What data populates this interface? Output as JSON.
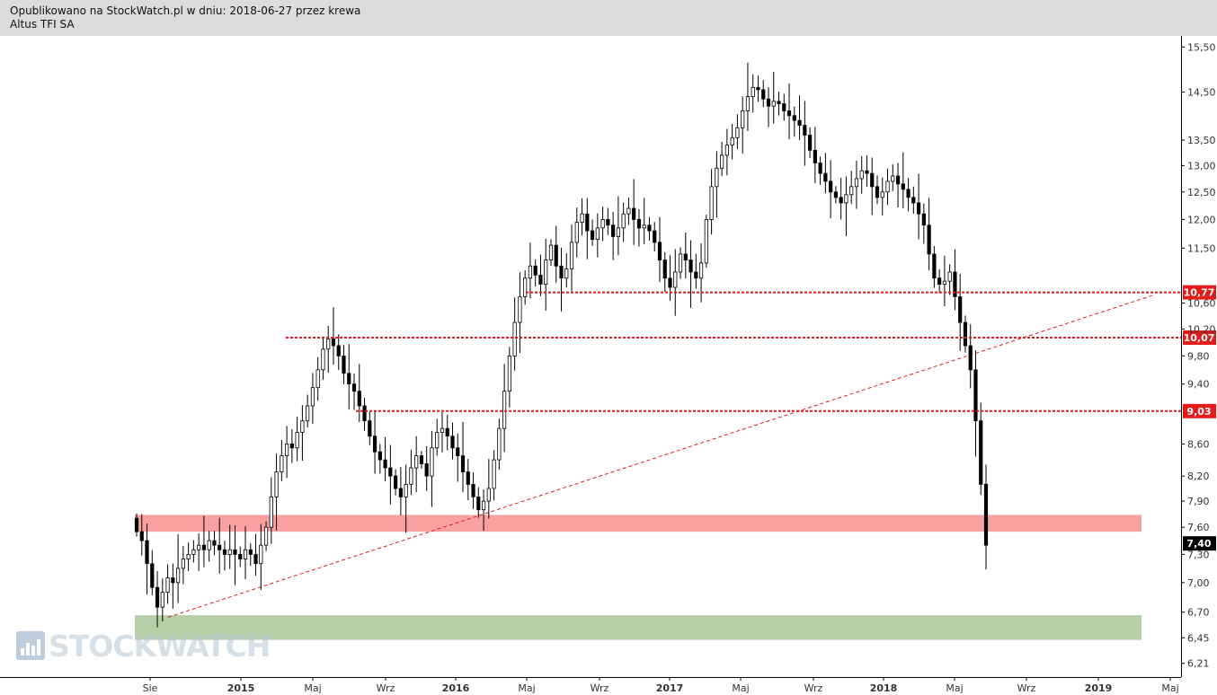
{
  "header": {
    "published_line": "Opublikowano na StockWatch.pl w dniu: 2018-06-27 przez krewa",
    "instrument": "Altus TFI SA"
  },
  "watermark": {
    "text": "STOCKWATCH"
  },
  "colors": {
    "level_line": "#e31b1b",
    "resistance_zone": "#f9a1a1",
    "support_zone": "#b5cfa8",
    "last_price_bg": "#000000",
    "candle_up": "#ffffff",
    "candle_down": "#000000"
  },
  "chart_data": {
    "type": "candlestick",
    "y_scale": "log",
    "ylim": [
      6.15,
      15.55
    ],
    "y_ticks": [
      "15,50",
      "14,50",
      "13,50",
      "13,00",
      "12,50",
      "12,00",
      "11,50",
      "10,60",
      "10,20",
      "9,80",
      "9,40",
      "8,60",
      "8,20",
      "7,90",
      "7,60",
      "7,30",
      "7,00",
      "6,70",
      "6,45",
      "6,21"
    ],
    "x_ticks": [
      {
        "label": "Sie",
        "bold": false
      },
      {
        "label": "2015",
        "bold": true
      },
      {
        "label": "Maj",
        "bold": false
      },
      {
        "label": "Wrz",
        "bold": false
      },
      {
        "label": "2016",
        "bold": true
      },
      {
        "label": "Maj",
        "bold": false
      },
      {
        "label": "Wrz",
        "bold": false
      },
      {
        "label": "2017",
        "bold": true
      },
      {
        "label": "Maj",
        "bold": false
      },
      {
        "label": "Wrz",
        "bold": false
      },
      {
        "label": "2018",
        "bold": true
      },
      {
        "label": "Maj",
        "bold": false
      },
      {
        "label": "Wrz",
        "bold": false
      },
      {
        "label": "2019",
        "bold": true
      },
      {
        "label": "Maj",
        "bold": false
      }
    ],
    "horizontal_levels": [
      {
        "value": 10.77,
        "label": "10,77"
      },
      {
        "value": 10.07,
        "label": "10,07"
      },
      {
        "value": 9.03,
        "label": "9,03"
      }
    ],
    "last_price": {
      "value": 7.4,
      "label": "7,40"
    },
    "zones": [
      {
        "name": "resistance-zone",
        "from": 7.55,
        "to": 7.74
      },
      {
        "name": "support-zone",
        "from": 6.43,
        "to": 6.67
      }
    ],
    "trendline": {
      "from": [
        "2014-09",
        6.65
      ],
      "to": [
        "2019-04",
        10.72
      ]
    },
    "price_path_weekly": [
      7.55,
      7.45,
      7.2,
      6.95,
      6.75,
      6.9,
      7.05,
      7.0,
      7.15,
      7.25,
      7.3,
      7.35,
      7.4,
      7.35,
      7.45,
      7.4,
      7.35,
      7.3,
      7.35,
      7.3,
      7.25,
      7.35,
      7.3,
      7.2,
      7.4,
      7.6,
      7.95,
      8.25,
      8.45,
      8.6,
      8.55,
      8.75,
      8.9,
      9.1,
      9.35,
      9.6,
      9.9,
      10.05,
      9.95,
      9.8,
      9.55,
      9.4,
      9.3,
      9.1,
      8.9,
      8.7,
      8.5,
      8.4,
      8.3,
      8.2,
      8.05,
      7.95,
      8.1,
      8.3,
      8.45,
      8.35,
      8.2,
      8.55,
      8.75,
      8.8,
      8.7,
      8.55,
      8.45,
      8.25,
      8.1,
      7.95,
      7.8,
      7.9,
      8.05,
      8.4,
      8.8,
      9.3,
      9.8,
      10.3,
      10.7,
      11.0,
      11.2,
      11.05,
      10.9,
      11.3,
      11.55,
      11.2,
      11.0,
      11.15,
      11.6,
      11.95,
      12.1,
      11.8,
      11.65,
      11.85,
      12.0,
      11.9,
      11.7,
      11.85,
      12.1,
      12.2,
      12.0,
      11.85,
      11.9,
      11.8,
      11.6,
      11.3,
      11.0,
      10.85,
      11.1,
      11.4,
      11.3,
      11.1,
      11.0,
      11.25,
      12.0,
      12.6,
      12.95,
      13.2,
      13.4,
      13.55,
      13.75,
      14.1,
      14.4,
      14.6,
      14.55,
      14.35,
      14.2,
      14.3,
      14.25,
      14.1,
      14.0,
      13.9,
      13.8,
      13.6,
      13.3,
      13.05,
      12.85,
      12.7,
      12.5,
      12.4,
      12.3,
      12.45,
      12.6,
      12.75,
      12.9,
      12.85,
      12.6,
      12.4,
      12.5,
      12.7,
      12.8,
      12.65,
      12.55,
      12.4,
      12.3,
      12.1,
      11.9,
      11.4,
      11.0,
      10.9,
      10.95,
      11.1,
      10.7,
      10.3,
      9.95,
      9.6,
      8.9,
      8.1,
      7.4
    ]
  }
}
